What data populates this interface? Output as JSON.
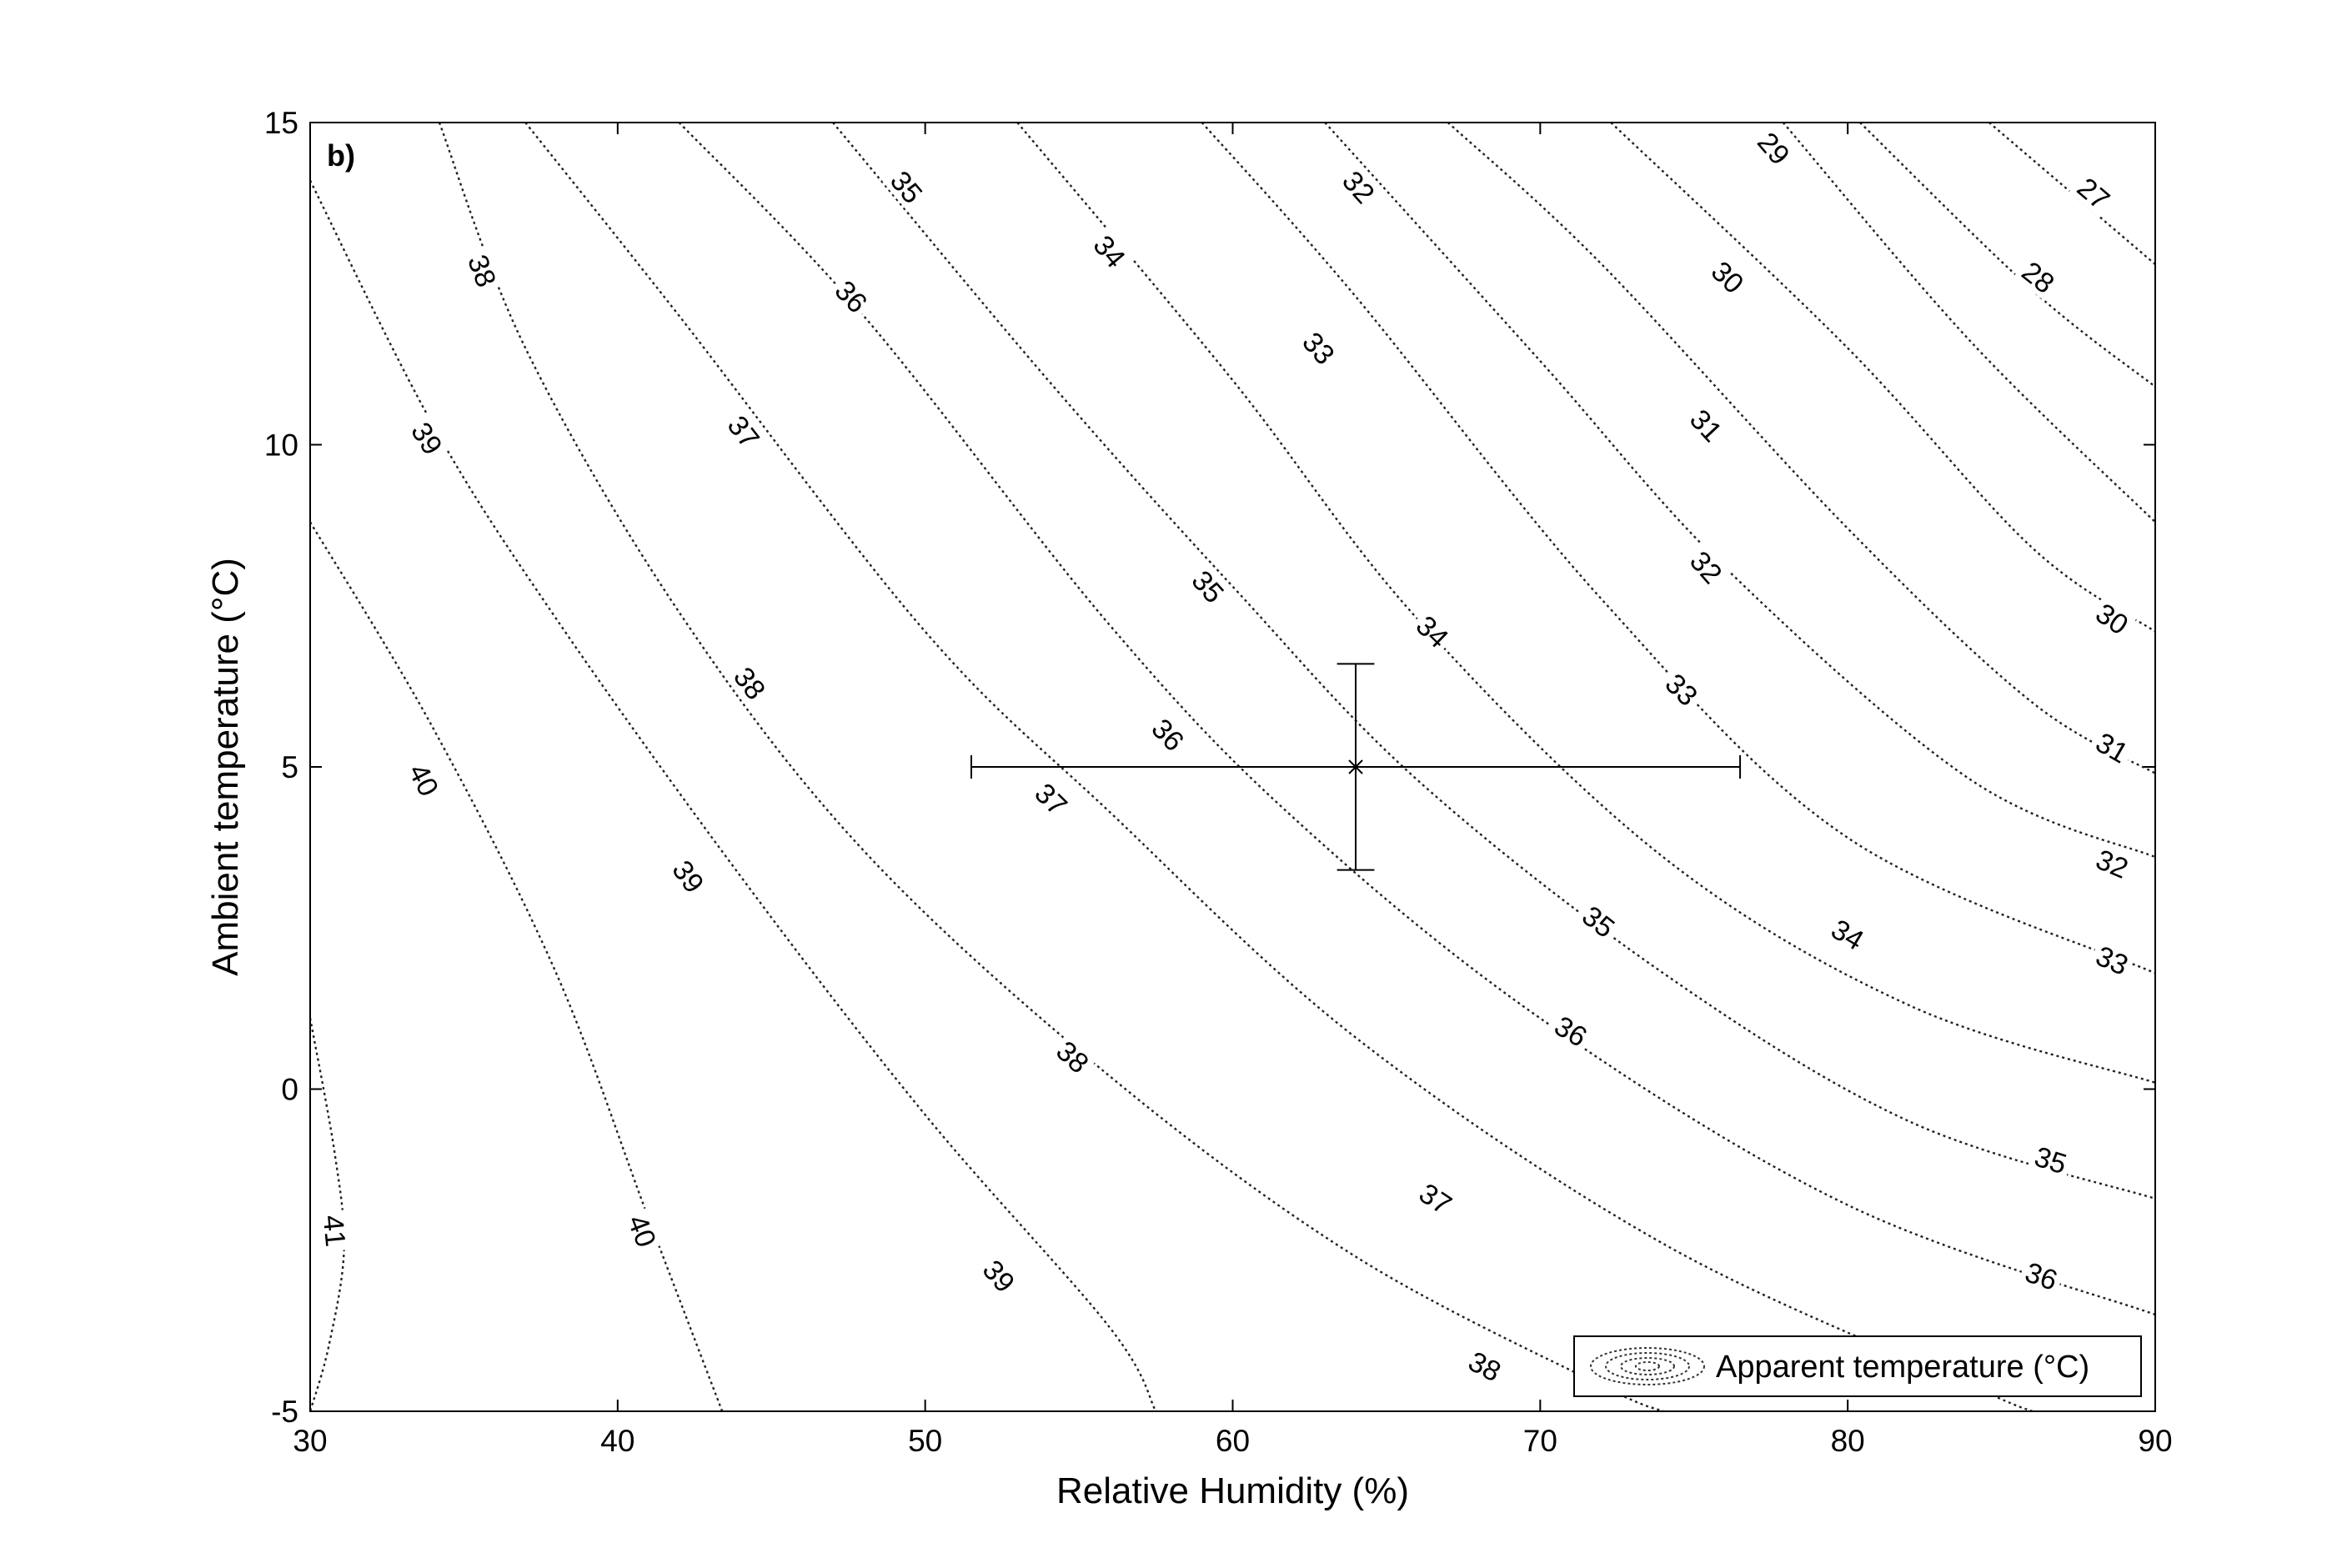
{
  "chart_data": {
    "type": "contour",
    "panel_label": "b)",
    "xlabel": "Relative Humidity (%)",
    "ylabel": "Ambient temperature (°C)",
    "xlim": [
      30,
      90
    ],
    "ylim": [
      -5,
      15
    ],
    "xticks": [
      30,
      40,
      50,
      60,
      70,
      80,
      90
    ],
    "yticks": [
      -5,
      0,
      5,
      10,
      15
    ],
    "grid": false,
    "legend": {
      "position": "bottom-right",
      "label": "Apparent temperature (°C)"
    },
    "contours": [
      {
        "level": 27,
        "points": [
          [
            84.6,
            15.0
          ],
          [
            90.0,
            12.8
          ]
        ],
        "labels": [
          [
            88.0,
            13.9
          ]
        ]
      },
      {
        "level": 28,
        "points": [
          [
            80.4,
            15.0
          ],
          [
            86.0,
            12.4
          ],
          [
            90.0,
            10.9
          ]
        ],
        "labels": [
          [
            86.2,
            12.6
          ]
        ]
      },
      {
        "level": 29,
        "points": [
          [
            77.9,
            15.0
          ],
          [
            84.0,
            11.6
          ],
          [
            90.0,
            8.8
          ]
        ],
        "labels": [
          [
            77.6,
            14.6
          ]
        ]
      },
      {
        "level": 30,
        "points": [
          [
            72.3,
            15.0
          ],
          [
            80.0,
            11.5
          ],
          [
            86.0,
            8.4
          ],
          [
            90.0,
            7.1
          ]
        ],
        "labels": [
          [
            76.1,
            12.6
          ],
          [
            88.6,
            7.3
          ]
        ]
      },
      {
        "level": 31,
        "points": [
          [
            67.0,
            15.0
          ],
          [
            72.0,
            12.8
          ],
          [
            80.0,
            8.7
          ],
          [
            86.0,
            6.0
          ],
          [
            90.0,
            4.9
          ]
        ],
        "labels": [
          [
            75.4,
            10.3
          ],
          [
            88.6,
            5.3
          ]
        ]
      },
      {
        "level": 32,
        "points": [
          [
            63.0,
            15.0
          ],
          [
            70.0,
            11.3
          ],
          [
            76.0,
            8.1
          ],
          [
            84.0,
            4.8
          ],
          [
            90.0,
            3.6
          ]
        ],
        "labels": [
          [
            64.1,
            14.0
          ],
          [
            75.4,
            8.1
          ],
          [
            88.6,
            3.5
          ]
        ]
      },
      {
        "level": 33,
        "points": [
          [
            59.0,
            15.0
          ],
          [
            64.0,
            12.3
          ],
          [
            72.0,
            7.6
          ],
          [
            80.0,
            3.9
          ],
          [
            90.0,
            1.8
          ]
        ],
        "labels": [
          [
            62.8,
            11.5
          ],
          [
            74.6,
            6.2
          ],
          [
            88.6,
            2.0
          ]
        ]
      },
      {
        "level": 34,
        "points": [
          [
            53.0,
            15.0
          ],
          [
            60.0,
            11.0
          ],
          [
            66.0,
            7.3
          ],
          [
            74.0,
            3.6
          ],
          [
            82.0,
            1.3
          ],
          [
            90.0,
            0.1
          ]
        ],
        "labels": [
          [
            56.0,
            13.0
          ],
          [
            66.5,
            7.1
          ],
          [
            80.0,
            2.4
          ]
        ]
      },
      {
        "level": 35,
        "points": [
          [
            47.0,
            15.0
          ],
          [
            54.0,
            11.0
          ],
          [
            60.0,
            7.8
          ],
          [
            66.0,
            4.8
          ],
          [
            74.0,
            1.8
          ],
          [
            82.0,
            -0.5
          ],
          [
            90.0,
            -1.7
          ]
        ],
        "labels": [
          [
            49.4,
            14.0
          ],
          [
            59.2,
            7.8
          ],
          [
            71.9,
            2.6
          ],
          [
            86.6,
            -1.1
          ]
        ]
      },
      {
        "level": 36,
        "points": [
          [
            42.0,
            15.0
          ],
          [
            48.0,
            12.0
          ],
          [
            56.0,
            7.2
          ],
          [
            62.0,
            4.2
          ],
          [
            70.0,
            1.1
          ],
          [
            80.0,
            -1.8
          ],
          [
            90.0,
            -3.5
          ]
        ],
        "labels": [
          [
            47.6,
            12.3
          ],
          [
            57.9,
            5.5
          ],
          [
            71.0,
            0.9
          ],
          [
            86.3,
            -2.9
          ]
        ]
      },
      {
        "level": 37,
        "points": [
          [
            37.0,
            15.0
          ],
          [
            42.0,
            12.0
          ],
          [
            50.0,
            7.1
          ],
          [
            56.0,
            4.3
          ],
          [
            64.0,
            0.8
          ],
          [
            74.0,
            -2.4
          ],
          [
            84.0,
            -4.6
          ],
          [
            86.0,
            -5.0
          ]
        ],
        "labels": [
          [
            44.1,
            10.2
          ],
          [
            54.1,
            4.5
          ],
          [
            66.6,
            -1.7
          ]
        ]
      },
      {
        "level": 38,
        "points": [
          [
            34.2,
            15.0
          ],
          [
            37.0,
            11.5
          ],
          [
            42.0,
            7.4
          ],
          [
            48.0,
            3.7
          ],
          [
            56.0,
            0.2
          ],
          [
            64.0,
            -2.6
          ],
          [
            72.0,
            -4.6
          ],
          [
            74.0,
            -5.0
          ]
        ],
        "labels": [
          [
            35.6,
            12.7
          ],
          [
            44.3,
            6.3
          ],
          [
            54.8,
            0.5
          ],
          [
            68.2,
            -4.3
          ]
        ]
      },
      {
        "level": 39,
        "points": [
          [
            30.0,
            14.1
          ],
          [
            34.0,
            10.3
          ],
          [
            38.0,
            7.3
          ],
          [
            44.0,
            3.3
          ],
          [
            50.0,
            -0.4
          ],
          [
            56.0,
            -3.7
          ],
          [
            57.5,
            -5.0
          ]
        ],
        "labels": [
          [
            33.8,
            10.1
          ],
          [
            42.3,
            3.3
          ],
          [
            52.4,
            -2.9
          ]
        ]
      },
      {
        "level": 40,
        "points": [
          [
            30.0,
            8.8
          ],
          [
            34.0,
            5.6
          ],
          [
            38.0,
            1.8
          ],
          [
            41.0,
            -2.0
          ],
          [
            43.4,
            -5.0
          ]
        ],
        "labels": [
          [
            33.7,
            4.8
          ],
          [
            40.8,
            -2.2
          ]
        ]
      },
      {
        "level": 41,
        "points": [
          [
            30.0,
            1.1
          ],
          [
            30.8,
            -1.0
          ],
          [
            31.1,
            -2.5
          ],
          [
            30.6,
            -4.0
          ],
          [
            30.0,
            -5.0
          ]
        ],
        "labels": [
          [
            30.8,
            -2.2
          ]
        ]
      }
    ],
    "crosshair": {
      "x": 64.0,
      "y": 5.0,
      "x_low": 51.5,
      "x_high": 76.5,
      "y_low": 3.4,
      "y_high": 6.6
    }
  }
}
